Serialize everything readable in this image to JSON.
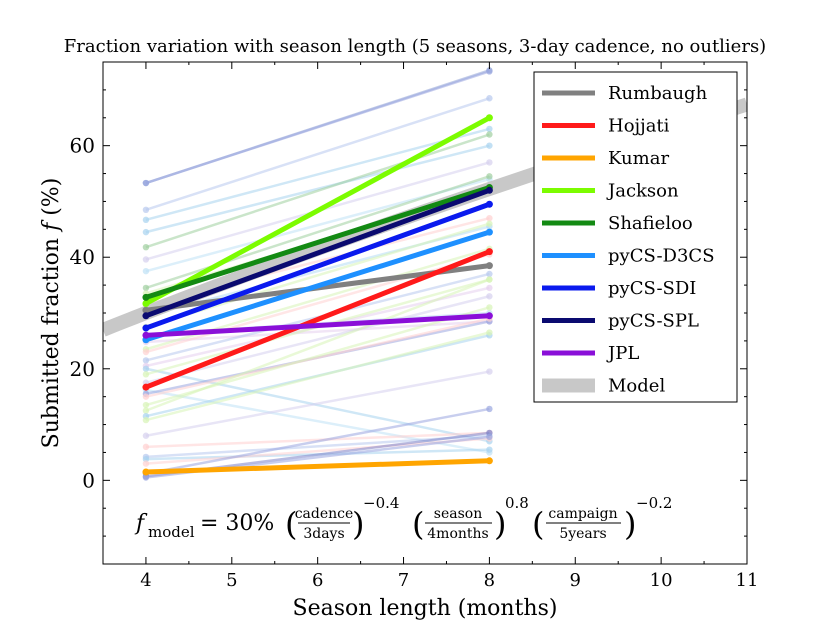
{
  "chart_data": {
    "type": "line",
    "title": "Fraction variation with season length (5 seasons, 3-day cadence, no outliers)",
    "xlabel": "Season length (months)",
    "ylabel": "Submitted fraction f (%)",
    "xlim": [
      3.5,
      11
    ],
    "ylim": [
      -15,
      75
    ],
    "xticks": [
      4,
      5,
      6,
      7,
      8,
      9,
      10,
      11
    ],
    "yticks": [
      0,
      20,
      40,
      60
    ],
    "grid": false,
    "legend_position": "top-right",
    "annotation": {
      "lhs": "f",
      "lhs_sub": "model",
      "prefix": "= 30%",
      "term1_num": "cadence",
      "term1_den": "3days",
      "term1_exp": "−0.4",
      "term2_num": "season",
      "term2_den": "4months",
      "term2_exp": "0.8",
      "term3_num": "campaign",
      "term3_den": "5years",
      "term3_exp": "−0.2"
    },
    "model": {
      "name": "Model",
      "color": "#c8c8c8",
      "coef": 30,
      "ref": 4,
      "exponent": 0.8
    },
    "series": [
      {
        "name": "Rumbaugh",
        "color": "#808080",
        "x": [
          4,
          8
        ],
        "values": [
          30.5,
          38.5
        ]
      },
      {
        "name": "Hojjati",
        "color": "#ff1a1a",
        "x": [
          4,
          8
        ],
        "values": [
          16.7,
          41
        ]
      },
      {
        "name": "Kumar",
        "color": "#ffa500",
        "x": [
          4,
          8
        ],
        "values": [
          1.5,
          3.5
        ]
      },
      {
        "name": "Jackson",
        "color": "#7cfc00",
        "x": [
          4,
          8
        ],
        "values": [
          31.7,
          65
        ]
      },
      {
        "name": "Shafieloo",
        "color": "#138a13",
        "x": [
          4,
          8
        ],
        "values": [
          32.8,
          52.5
        ]
      },
      {
        "name": "pyCS-D3CS",
        "color": "#1e90ff",
        "x": [
          4,
          8
        ],
        "values": [
          25.2,
          44.5
        ]
      },
      {
        "name": "pyCS-SDI",
        "color": "#0a1aee",
        "x": [
          4,
          8
        ],
        "values": [
          27.3,
          49.5
        ]
      },
      {
        "name": "pyCS-SPL",
        "color": "#0a0a70",
        "x": [
          4,
          8
        ],
        "values": [
          29.5,
          52
        ]
      },
      {
        "name": "JPL",
        "color": "#8a0fd8",
        "x": [
          4,
          8
        ],
        "values": [
          26,
          29.5
        ]
      }
    ],
    "background_lines": [
      {
        "color": "#8fa2d6",
        "values": [
          53.3,
          73.5
        ]
      },
      {
        "color": "#9aa6e0",
        "values": [
          53.3,
          73.3
        ]
      },
      {
        "color": "#b8c9ee",
        "values": [
          48.5,
          68.5
        ]
      },
      {
        "color": "#a8d3ef",
        "values": [
          46.7,
          63
        ]
      },
      {
        "color": "#a8d3ef",
        "values": [
          44.5,
          60
        ]
      },
      {
        "color": "#9fcf9f",
        "values": [
          41.8,
          62
        ]
      },
      {
        "color": "#d6d0ee",
        "values": [
          39.6,
          57
        ]
      },
      {
        "color": "#bfe1f5",
        "values": [
          37.5,
          54
        ]
      },
      {
        "color": "#9fcf9f",
        "values": [
          34.5,
          54.5
        ]
      },
      {
        "color": "#d7f4b6",
        "values": [
          33.5,
          52
        ]
      },
      {
        "color": "#ffd0d0",
        "values": [
          31.5,
          47
        ]
      },
      {
        "color": "#b5dcf4",
        "values": [
          29.5,
          45.5
        ]
      },
      {
        "color": "#d7f4b6",
        "values": [
          27.5,
          46
        ]
      },
      {
        "color": "#bfe1f5",
        "values": [
          26.2,
          30
        ]
      },
      {
        "color": "#e6d0ee",
        "values": [
          24.8,
          28.5
        ]
      },
      {
        "color": "#d7f4b6",
        "values": [
          23.5,
          41.5
        ]
      },
      {
        "color": "#ffd2d2",
        "values": [
          23,
          40.5
        ]
      },
      {
        "color": "#b8c9ee",
        "values": [
          21.5,
          37
        ]
      },
      {
        "color": "#e6d0ee",
        "values": [
          20.5,
          34.5
        ]
      },
      {
        "color": "#a8d3ef",
        "values": [
          20,
          7
        ]
      },
      {
        "color": "#d7f4b6",
        "values": [
          19,
          36
        ]
      },
      {
        "color": "#d6d0ee",
        "values": [
          17.5,
          33
        ]
      },
      {
        "color": "#bfe1f5",
        "values": [
          16.2,
          5
        ]
      },
      {
        "color": "#9aa6e0",
        "values": [
          15.5,
          28.5
        ]
      },
      {
        "color": "#ffd0d0",
        "values": [
          15,
          29
        ]
      },
      {
        "color": "#d7f4b6",
        "values": [
          13.5,
          31
        ]
      },
      {
        "color": "#d7f4b6",
        "values": [
          12.5,
          36
        ]
      },
      {
        "color": "#a8d3ef",
        "values": [
          11.5,
          26
        ]
      },
      {
        "color": "#d7f4b6",
        "values": [
          10.8,
          26.5
        ]
      },
      {
        "color": "#d6d0ee",
        "values": [
          8,
          19.5
        ]
      },
      {
        "color": "#ffd0d0",
        "values": [
          6,
          8.5
        ]
      },
      {
        "color": "#b8c9ee",
        "values": [
          4.2,
          8
        ]
      },
      {
        "color": "#a8d3ef",
        "values": [
          3.8,
          5.5
        ]
      },
      {
        "color": "#ffd2d2",
        "values": [
          3,
          7.5
        ]
      },
      {
        "color": "#9aa6e0",
        "values": [
          1.2,
          12.8
        ]
      },
      {
        "color": "#7d83c9",
        "values": [
          0.7,
          8.5
        ]
      },
      {
        "color": "#9aa6e0",
        "values": [
          0.5,
          7.8
        ]
      }
    ]
  }
}
